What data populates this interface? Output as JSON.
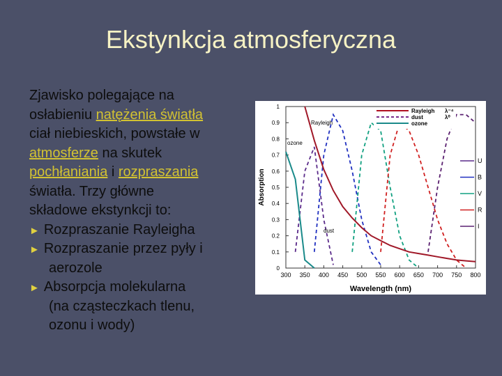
{
  "slide": {
    "title": "Ekstynkcja atmosferyczna",
    "lines": [
      {
        "segments": [
          {
            "text": "Zjawisko polegające na"
          }
        ]
      },
      {
        "segments": [
          {
            "text": "osłabieniu "
          },
          {
            "text": "natężenia światła",
            "link": true
          }
        ]
      },
      {
        "segments": [
          {
            "text": "ciał niebieskich, powstałe w"
          }
        ]
      },
      {
        "segments": [
          {
            "text": "atmosferze",
            "link": true
          },
          {
            "text": " na skutek"
          }
        ]
      },
      {
        "segments": [
          {
            "text": "pochłaniania",
            "link": true
          },
          {
            "text": " i "
          },
          {
            "text": "rozpraszania",
            "link": true
          }
        ]
      },
      {
        "segments": [
          {
            "text": "światła. Trzy główne"
          }
        ]
      },
      {
        "segments": [
          {
            "text": "składowe ekstynkcji to:"
          }
        ]
      },
      {
        "bullet": "►",
        "segments": [
          {
            "text": "Rozpraszanie Rayleigha"
          }
        ]
      },
      {
        "bullet": "►",
        "segments": [
          {
            "text": "Rozpraszanie przez pyły i"
          }
        ]
      },
      {
        "indent": true,
        "segments": [
          {
            "text": "aerozole"
          }
        ]
      },
      {
        "bullet": "►",
        "segments": [
          {
            "text": "Absorpcja molekularna"
          }
        ]
      },
      {
        "indent": true,
        "segments": [
          {
            "text": "(na cząsteczkach tlenu,"
          }
        ]
      },
      {
        "indent": true,
        "segments": [
          {
            "text": "ozonu i wody)"
          }
        ]
      }
    ]
  },
  "figure": {
    "xlabel": "Wavelength (nm)",
    "ylabel": "Absorption",
    "xlim": [
      300,
      800
    ],
    "ylim": [
      0,
      1
    ],
    "xticks": [
      300,
      350,
      400,
      450,
      500,
      550,
      600,
      650,
      700,
      750,
      800
    ],
    "yticks": [
      0,
      0.1,
      0.2,
      0.3,
      0.4,
      0.5,
      0.6,
      0.7,
      0.8,
      0.9,
      1
    ],
    "legend": [
      {
        "label": "Rayleigh",
        "formula": "λ⁻⁴",
        "color": "#b01020",
        "dash": false
      },
      {
        "label": "dust",
        "formula": "λ⁰",
        "color": "#7a2a8a",
        "dash": true
      },
      {
        "label": "ozone",
        "color": "#1a8a8a",
        "dash": false
      }
    ],
    "annotations": [
      "Rayleigh",
      "ozone",
      "dust"
    ],
    "x": [
      300,
      325,
      350,
      375,
      400,
      425,
      450,
      475,
      500,
      525,
      550,
      575,
      600,
      625,
      650,
      675,
      700,
      725,
      750,
      775,
      800
    ],
    "curves": [
      {
        "color": "#a01828",
        "dash": false,
        "values": [
          null,
          null,
          1.0,
          0.79,
          0.61,
          0.48,
          0.38,
          0.31,
          0.25,
          0.2,
          0.17,
          0.14,
          0.12,
          0.1,
          0.09,
          0.08,
          0.07,
          0.06,
          0.05,
          0.045,
          0.04
        ]
      },
      {
        "color": "#1a8a8a",
        "dash": false,
        "values": [
          0.72,
          0.55,
          0.05,
          0,
          null,
          null,
          null,
          null,
          null,
          null,
          null,
          null,
          null,
          null,
          null,
          null,
          null,
          null,
          null,
          null,
          null
        ]
      }
    ],
    "filters": [
      {
        "name": "U",
        "color": "#5a2a8a",
        "values": [
          null,
          0.1,
          0.6,
          0.75,
          0.3,
          0.02,
          null,
          null,
          null,
          null,
          null,
          null,
          null,
          null,
          null,
          null,
          null,
          null,
          null,
          null,
          null
        ]
      },
      {
        "name": "B",
        "color": "#2030c0",
        "values": [
          null,
          null,
          null,
          0.1,
          0.7,
          0.95,
          0.85,
          0.6,
          0.3,
          0.1,
          0.02,
          null,
          null,
          null,
          null,
          null,
          null,
          null,
          null,
          null,
          null
        ]
      },
      {
        "name": "V",
        "color": "#10a080",
        "values": [
          null,
          null,
          null,
          null,
          null,
          null,
          null,
          0.1,
          0.7,
          0.9,
          0.85,
          0.5,
          0.2,
          0.05,
          0,
          null,
          null,
          null,
          null,
          null,
          null
        ]
      },
      {
        "name": "R",
        "color": "#d02020",
        "values": [
          null,
          null,
          null,
          null,
          null,
          null,
          null,
          null,
          null,
          null,
          0.1,
          0.7,
          0.9,
          0.85,
          0.7,
          0.5,
          0.3,
          0.15,
          0.05,
          0,
          null
        ]
      },
      {
        "name": "I",
        "color": "#5a2070",
        "values": [
          null,
          null,
          null,
          null,
          null,
          null,
          null,
          null,
          null,
          null,
          null,
          null,
          null,
          null,
          null,
          0.1,
          0.5,
          0.8,
          0.95,
          0.95,
          0.9
        ]
      }
    ]
  }
}
